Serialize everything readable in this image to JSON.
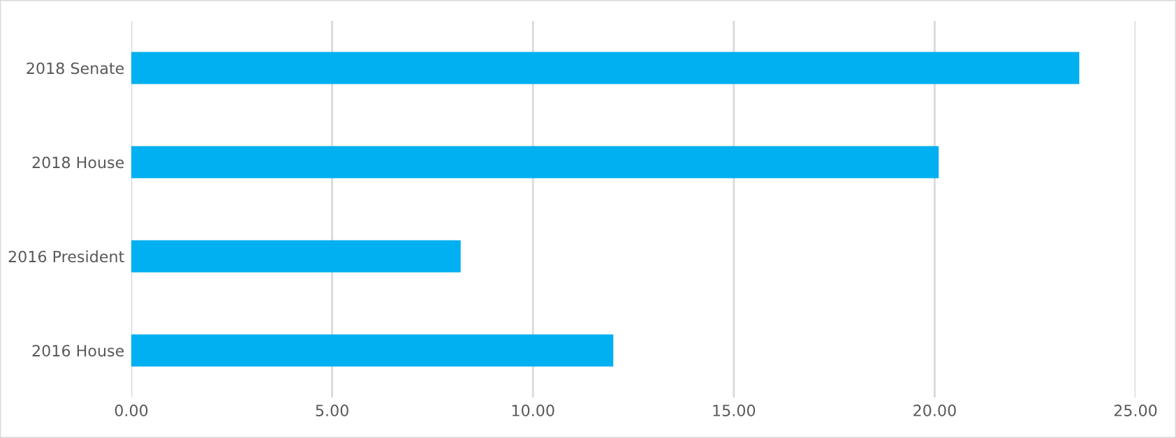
{
  "chart_data": {
    "type": "bar",
    "orientation": "horizontal",
    "categories": [
      "2018 Senate",
      "2018 House",
      "2016 President",
      "2016 House"
    ],
    "values": [
      23.6,
      20.1,
      8.2,
      12.0
    ],
    "color": "#00b0f0",
    "xlim": [
      0,
      25
    ],
    "xticks": [
      {
        "value": 0,
        "label": "0.00"
      },
      {
        "value": 5,
        "label": "5.00"
      },
      {
        "value": 10,
        "label": "10.00"
      },
      {
        "value": 15,
        "label": "15.00"
      },
      {
        "value": 20,
        "label": "20.00"
      },
      {
        "value": 25,
        "label": "25.00"
      }
    ],
    "grid": "x"
  }
}
